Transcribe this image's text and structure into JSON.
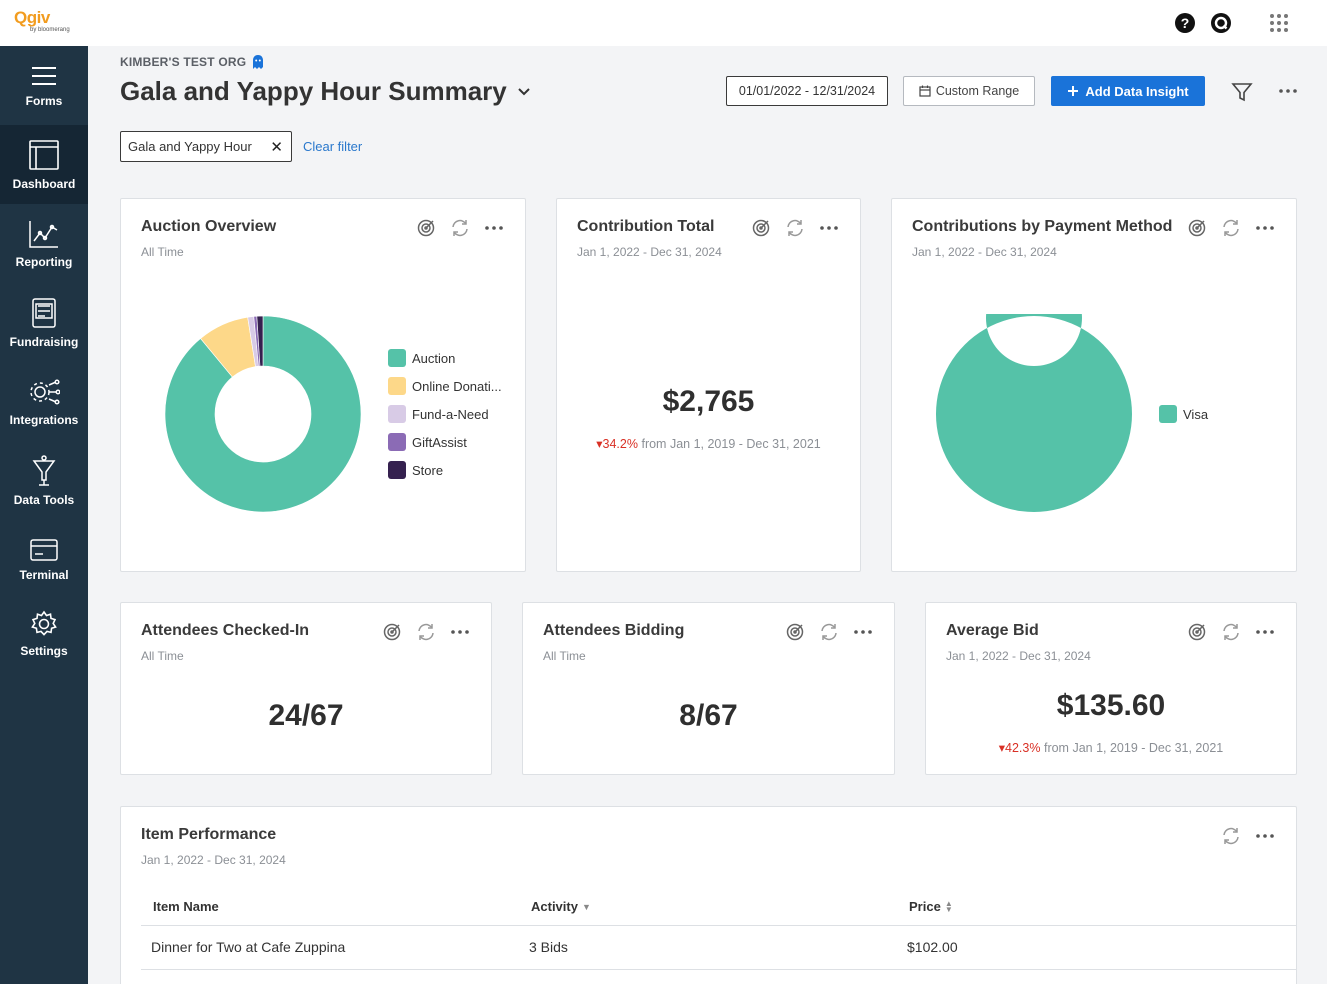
{
  "brand": {
    "logo": "Qgiv",
    "logo_sub": "by bloomerang"
  },
  "topbar": {
    "icons": [
      "help-icon",
      "qgiv-search-icon",
      "apps-grid-icon"
    ]
  },
  "sidebar": {
    "items": [
      {
        "label": "Forms",
        "icon": "hamburger-icon"
      },
      {
        "label": "Dashboard",
        "icon": "dashboard-icon"
      },
      {
        "label": "Reporting",
        "icon": "reporting-icon"
      },
      {
        "label": "Fundraising",
        "icon": "fundraising-icon"
      },
      {
        "label": "Integrations",
        "icon": "integrations-icon"
      },
      {
        "label": "Data Tools",
        "icon": "data-tools-icon"
      },
      {
        "label": "Terminal",
        "icon": "terminal-icon"
      },
      {
        "label": "Settings",
        "icon": "settings-icon"
      }
    ]
  },
  "header": {
    "org": "KIMBER'S TEST ORG",
    "title": "Gala and Yappy Hour Summary",
    "date_range": "01/01/2022 - 12/31/2024",
    "custom_range": "Custom Range",
    "add_insight": "Add Data Insight"
  },
  "filters": {
    "chip": "Gala and Yappy Hour",
    "clear": "Clear filter"
  },
  "cards": {
    "auction": {
      "title": "Auction Overview",
      "sub": "All Time",
      "legend": [
        "Auction",
        "Online Donati...",
        "Fund-a-Need",
        "GiftAssist",
        "Store"
      ],
      "colors": [
        "#55c2a8",
        "#fdd889",
        "#d8cbe6",
        "#8b6bb5",
        "#35214f"
      ]
    },
    "contribution": {
      "title": "Contribution Total",
      "sub": "Jan 1, 2022 - Dec 31, 2024",
      "value": "$2,765",
      "delta": "34.2%",
      "delta_text": "from Jan 1, 2019 - Dec 31, 2021"
    },
    "payment": {
      "title": "Contributions by Payment Method",
      "sub": "Jan 1, 2022 - Dec 31, 2024",
      "legend": [
        "Visa"
      ],
      "color": "#55c2a8"
    },
    "checked_in": {
      "title": "Attendees Checked-In",
      "sub": "All Time",
      "value": "24/67"
    },
    "bidding": {
      "title": "Attendees Bidding",
      "sub": "All Time",
      "value": "8/67"
    },
    "avg_bid": {
      "title": "Average Bid",
      "sub": "Jan 1, 2022 - Dec 31, 2024",
      "value": "$135.60",
      "delta": "42.3%",
      "delta_text": "from Jan 1, 2019 - Dec 31, 2021"
    },
    "items": {
      "title": "Item Performance",
      "sub": "Jan 1, 2022 - Dec 31, 2024",
      "columns": [
        "Item Name",
        "Activity",
        "Price"
      ],
      "rows": [
        {
          "name": "Dinner for Two at Cafe Zuppina",
          "activity": "3 Bids",
          "price": "$102.00"
        }
      ]
    }
  },
  "chart_data": [
    {
      "type": "pie",
      "title": "Auction Overview",
      "categories": [
        "Auction",
        "Online Donati...",
        "Fund-a-Need",
        "GiftAssist",
        "Store"
      ],
      "values": [
        89,
        8.5,
        1,
        0.5,
        1
      ]
    },
    {
      "type": "pie",
      "title": "Contributions by Payment Method",
      "categories": [
        "Visa"
      ],
      "values": [
        100
      ]
    }
  ]
}
